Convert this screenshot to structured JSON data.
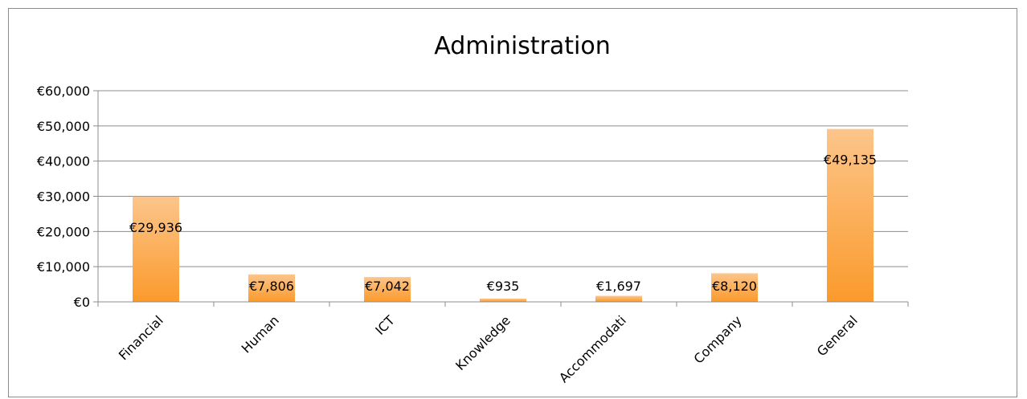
{
  "chart_data": {
    "type": "bar",
    "title": "Administration",
    "categories": [
      "Financial",
      "Human",
      "ICT",
      "Knowledge",
      "Accommodati",
      "Company",
      "General"
    ],
    "values": [
      29936,
      7806,
      7042,
      935,
      1697,
      8120,
      49135
    ],
    "data_labels": [
      "€29,936",
      "€7,806",
      "€7,042",
      "€935",
      "€1,697",
      "€8,120",
      "€49,135"
    ],
    "y_ticks": [
      "€0",
      "€10,000",
      "€20,000",
      "€30,000",
      "€40,000",
      "€50,000",
      "€60,000"
    ],
    "ylim": [
      0,
      60000
    ],
    "y_step": 10000,
    "grid": true,
    "legend": "none",
    "bar_color_top": "#fcc58a",
    "bar_color_bottom": "#fb9a2c",
    "grid_color": "#8c8c8c"
  }
}
